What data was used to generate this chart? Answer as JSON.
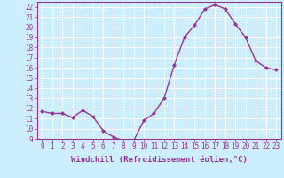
{
  "x": [
    0,
    1,
    2,
    3,
    4,
    5,
    6,
    7,
    8,
    9,
    10,
    11,
    12,
    13,
    14,
    15,
    16,
    17,
    18,
    19,
    20,
    21,
    22,
    23
  ],
  "y": [
    11.7,
    11.5,
    11.5,
    11.1,
    11.8,
    11.2,
    9.8,
    9.2,
    8.8,
    8.8,
    10.8,
    11.5,
    13.0,
    16.3,
    19.0,
    20.2,
    21.8,
    22.2,
    21.8,
    20.3,
    19.0,
    16.7,
    16.0,
    15.8
  ],
  "xlim": [
    -0.5,
    23.5
  ],
  "ylim": [
    9,
    22.5
  ],
  "yticks": [
    9,
    10,
    11,
    12,
    13,
    14,
    15,
    16,
    17,
    18,
    19,
    20,
    21,
    22
  ],
  "xticks": [
    0,
    1,
    2,
    3,
    4,
    5,
    6,
    7,
    8,
    9,
    10,
    11,
    12,
    13,
    14,
    15,
    16,
    17,
    18,
    19,
    20,
    21,
    22,
    23
  ],
  "xlabel": "Windchill (Refroidissement éolien,°C)",
  "line_color": "#993399",
  "marker": "D",
  "marker_size": 2,
  "bg_color": "#cceeff",
  "grid_color": "#ffffff",
  "tick_fontsize": 5.5,
  "xlabel_fontsize": 6.5,
  "linewidth": 1.0
}
